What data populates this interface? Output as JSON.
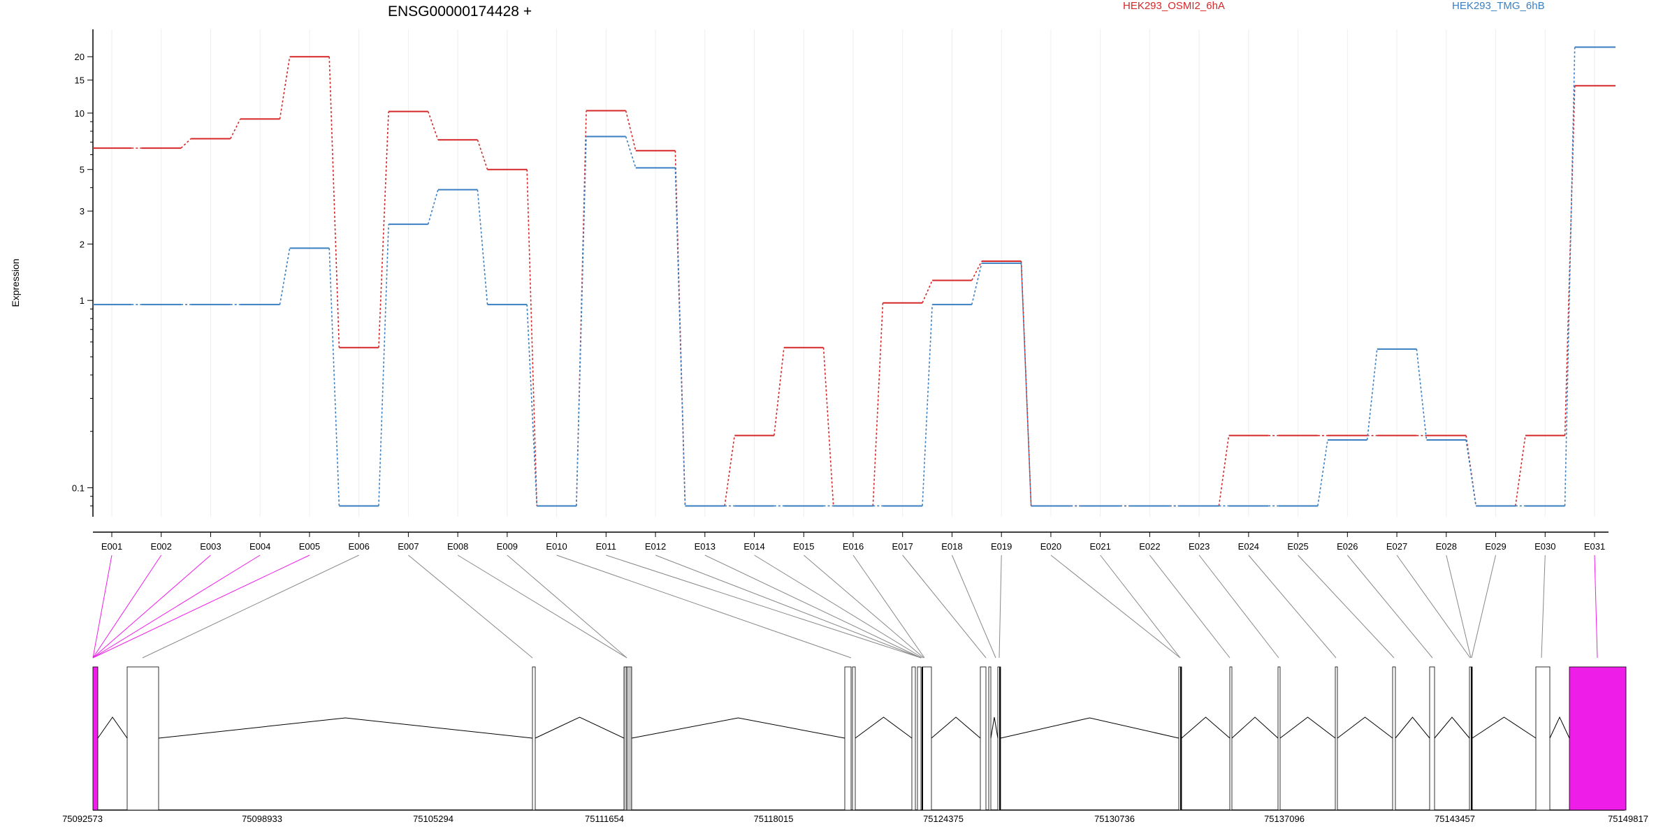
{
  "chart_data": {
    "type": "line",
    "title": "ENSG00000174428 +",
    "ylabel": "Expression",
    "xlabel": "",
    "yscale": "log",
    "ylim": [
      0.07,
      28
    ],
    "yticks": [
      0.1,
      1,
      2,
      3,
      5,
      10,
      15,
      20
    ],
    "ytick_labels": [
      "0.1",
      "1",
      "2",
      "3",
      "5",
      "10",
      "15",
      "20"
    ],
    "grid": "vertical gridlines at each exon",
    "legend_position": "top",
    "categories": [
      "E001",
      "E002",
      "E003",
      "E004",
      "E005",
      "E006",
      "E007",
      "E008",
      "E009",
      "E010",
      "E011",
      "E012",
      "E013",
      "E014",
      "E015",
      "E016",
      "E017",
      "E018",
      "E019",
      "E020",
      "E021",
      "E022",
      "E023",
      "E024",
      "E025",
      "E026",
      "E027",
      "E028",
      "E029",
      "E030",
      "E031"
    ],
    "series": [
      {
        "name": "HEK293_OSMI2_6hA",
        "color": "#d62728",
        "values": [
          6.5,
          6.5,
          7.3,
          9.3,
          20,
          0.56,
          10.2,
          7.2,
          5.0,
          0.08,
          10.3,
          6.3,
          0.08,
          0.19,
          0.56,
          0.08,
          0.97,
          1.28,
          1.62,
          0.08,
          0.08,
          0.08,
          0.08,
          0.19,
          0.19,
          0.19,
          0.19,
          0.19,
          0.08,
          0.19,
          14
        ]
      },
      {
        "name": "HEK293_TMG_6hB",
        "color": "#3a7fc1",
        "values": [
          0.95,
          0.95,
          0.95,
          0.95,
          1.9,
          0.08,
          2.55,
          3.9,
          0.95,
          0.08,
          7.5,
          5.1,
          0.08,
          0.08,
          0.08,
          0.08,
          0.08,
          0.95,
          1.58,
          0.08,
          0.08,
          0.08,
          0.08,
          0.08,
          0.08,
          0.18,
          0.55,
          0.18,
          0.08,
          0.08,
          22.5
        ]
      }
    ],
    "gene_model": {
      "coordinate_labels": [
        "75092573",
        "75098933",
        "75105294",
        "75111654",
        "75118015",
        "75124375",
        "75130736",
        "75137096",
        "75143457",
        "75149817"
      ],
      "highlight_color": "#ef1de8",
      "highlighted_exons": [
        "E001",
        "E002",
        "E003",
        "E004",
        "E005",
        "E031"
      ]
    }
  }
}
